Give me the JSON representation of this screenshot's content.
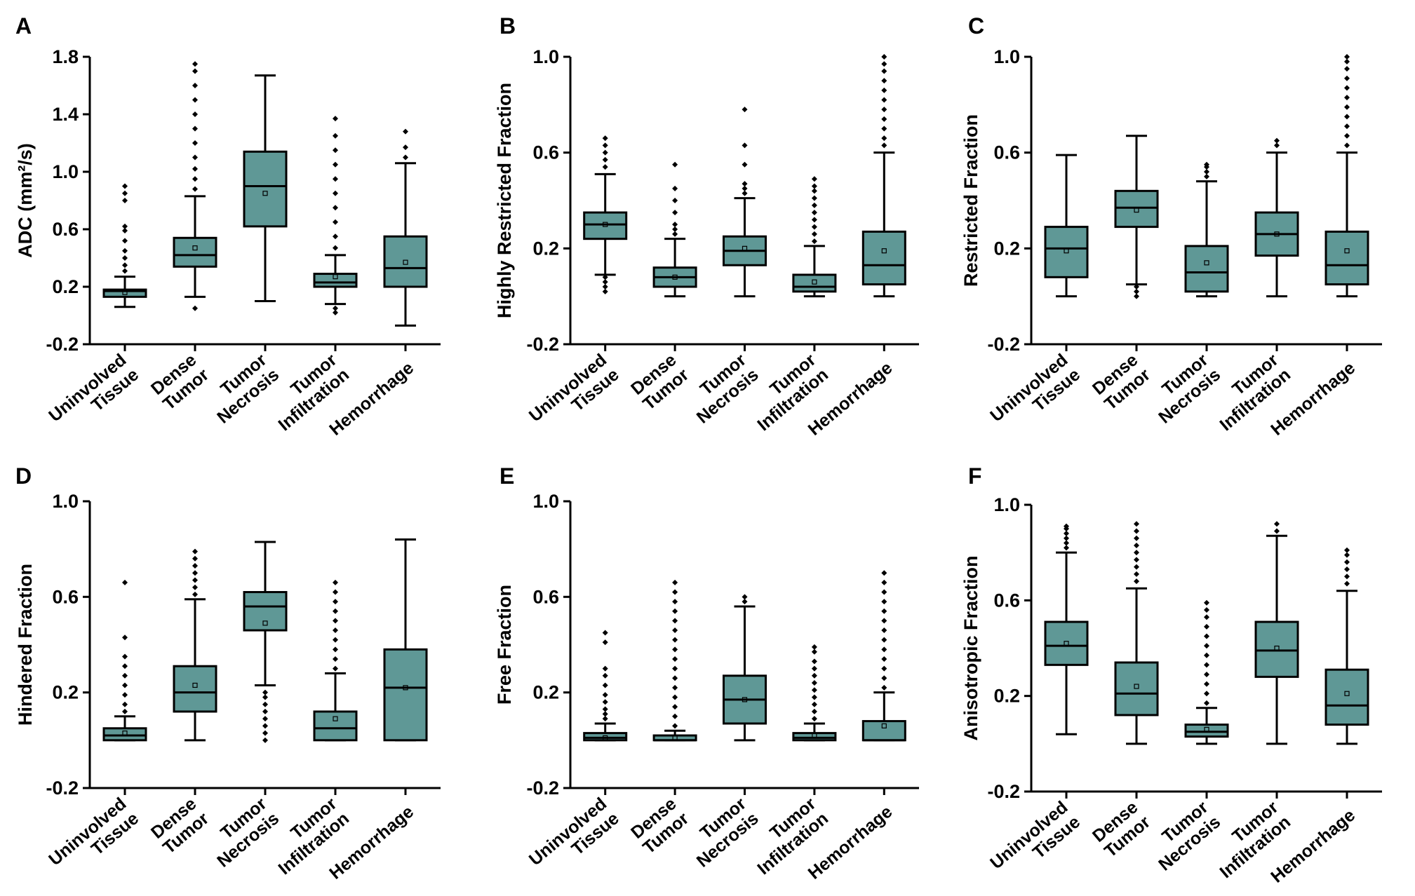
{
  "colors": {
    "box_fill": "#5f9896",
    "stroke": "#000000",
    "background": "#ffffff"
  },
  "chart_data": [
    {
      "panel": "A",
      "type": "boxplot",
      "ylabel": "ADC (mm²/s)",
      "ylim": [
        -0.2,
        1.8
      ],
      "yticks": [
        -0.2,
        0.2,
        0.6,
        1.0,
        1.4,
        1.8
      ],
      "categories": [
        "Uninvolved Tissue",
        "Dense Tumor",
        "Tumor Necrosis",
        "Tumor Infiltration",
        "Hemorrhage"
      ],
      "boxes": [
        {
          "wlo": 0.06,
          "q1": 0.13,
          "med": 0.17,
          "q3": 0.18,
          "whi": 0.27,
          "mean": 0.16,
          "out_lo": [],
          "out_hi": [
            0.31,
            0.35,
            0.4,
            0.45,
            0.52,
            0.59,
            0.62,
            0.8,
            0.85,
            0.9
          ]
        },
        {
          "wlo": 0.13,
          "q1": 0.34,
          "med": 0.42,
          "q3": 0.54,
          "whi": 0.83,
          "mean": 0.47,
          "out_lo": [
            0.05
          ],
          "out_hi": [
            0.88,
            0.95,
            1.02,
            1.1,
            1.2,
            1.3,
            1.4,
            1.5,
            1.6,
            1.7,
            1.75
          ]
        },
        {
          "wlo": 0.1,
          "q1": 0.62,
          "med": 0.9,
          "q3": 1.14,
          "whi": 1.67,
          "mean": 0.85,
          "out_lo": [],
          "out_hi": []
        },
        {
          "wlo": 0.08,
          "q1": 0.2,
          "med": 0.23,
          "q3": 0.29,
          "whi": 0.42,
          "mean": 0.27,
          "out_lo": [
            0.02,
            0.05
          ],
          "out_hi": [
            0.47,
            0.55,
            0.65,
            0.75,
            0.85,
            0.95,
            1.05,
            1.15,
            1.25,
            1.37
          ]
        },
        {
          "wlo": -0.07,
          "q1": 0.2,
          "med": 0.33,
          "q3": 0.55,
          "whi": 1.06,
          "mean": 0.37,
          "out_lo": [],
          "out_hi": [
            1.1,
            1.17,
            1.28
          ]
        }
      ]
    },
    {
      "panel": "B",
      "type": "boxplot",
      "ylabel": "Highly Restricted Fraction",
      "ylim": [
        -0.2,
        1.0
      ],
      "yticks": [
        -0.2,
        0.2,
        0.6,
        1.0
      ],
      "categories": [
        "Uninvolved Tissue",
        "Dense Tumor",
        "Tumor Necrosis",
        "Tumor Infiltration",
        "Hemorrhage"
      ],
      "boxes": [
        {
          "wlo": 0.09,
          "q1": 0.24,
          "med": 0.3,
          "q3": 0.35,
          "whi": 0.51,
          "mean": 0.3,
          "out_lo": [
            0.02,
            0.04,
            0.06,
            0.08
          ],
          "out_hi": [
            0.54,
            0.57,
            0.6,
            0.63,
            0.66
          ]
        },
        {
          "wlo": 0.0,
          "q1": 0.04,
          "med": 0.08,
          "q3": 0.12,
          "whi": 0.24,
          "mean": 0.08,
          "out_lo": [],
          "out_hi": [
            0.26,
            0.28,
            0.3,
            0.35,
            0.4,
            0.45,
            0.55
          ]
        },
        {
          "wlo": 0.0,
          "q1": 0.13,
          "med": 0.19,
          "q3": 0.25,
          "whi": 0.41,
          "mean": 0.2,
          "out_lo": [],
          "out_hi": [
            0.43,
            0.45,
            0.47,
            0.55,
            0.63,
            0.78
          ]
        },
        {
          "wlo": 0.0,
          "q1": 0.02,
          "med": 0.04,
          "q3": 0.09,
          "whi": 0.21,
          "mean": 0.06,
          "out_lo": [],
          "out_hi": [
            0.23,
            0.26,
            0.29,
            0.32,
            0.35,
            0.38,
            0.41,
            0.44,
            0.46,
            0.49
          ]
        },
        {
          "wlo": 0.0,
          "q1": 0.05,
          "med": 0.13,
          "q3": 0.27,
          "whi": 0.6,
          "mean": 0.19,
          "out_lo": [],
          "out_hi": [
            0.63,
            0.66,
            0.7,
            0.74,
            0.78,
            0.82,
            0.86,
            0.9,
            0.94,
            0.97,
            1.0
          ]
        }
      ]
    },
    {
      "panel": "C",
      "type": "boxplot",
      "ylabel": "Restricted Fraction",
      "ylim": [
        -0.2,
        1.0
      ],
      "yticks": [
        -0.2,
        0.2,
        0.6,
        1.0
      ],
      "categories": [
        "Uninvolved Tissue",
        "Dense Tumor",
        "Tumor Necrosis",
        "Tumor Infiltration",
        "Hemorrhage"
      ],
      "boxes": [
        {
          "wlo": 0.0,
          "q1": 0.08,
          "med": 0.2,
          "q3": 0.29,
          "whi": 0.59,
          "mean": 0.19,
          "out_lo": [],
          "out_hi": []
        },
        {
          "wlo": 0.05,
          "q1": 0.29,
          "med": 0.37,
          "q3": 0.44,
          "whi": 0.67,
          "mean": 0.36,
          "out_lo": [
            0.0,
            0.02,
            0.04
          ],
          "out_hi": []
        },
        {
          "wlo": 0.0,
          "q1": 0.02,
          "med": 0.1,
          "q3": 0.21,
          "whi": 0.48,
          "mean": 0.14,
          "out_lo": [],
          "out_hi": [
            0.5,
            0.52,
            0.54,
            0.55
          ]
        },
        {
          "wlo": 0.0,
          "q1": 0.17,
          "med": 0.26,
          "q3": 0.35,
          "whi": 0.6,
          "mean": 0.26,
          "out_lo": [],
          "out_hi": [
            0.63,
            0.65
          ]
        },
        {
          "wlo": 0.0,
          "q1": 0.05,
          "med": 0.13,
          "q3": 0.27,
          "whi": 0.6,
          "mean": 0.19,
          "out_lo": [],
          "out_hi": [
            0.63,
            0.67,
            0.71,
            0.75,
            0.79,
            0.83,
            0.87,
            0.91,
            0.95,
            0.98,
            1.0
          ]
        }
      ]
    },
    {
      "panel": "D",
      "type": "boxplot",
      "ylabel": "Hindered Fraction",
      "ylim": [
        -0.2,
        1.0
      ],
      "yticks": [
        -0.2,
        0.2,
        0.6,
        1.0
      ],
      "categories": [
        "Uninvolved Tissue",
        "Dense Tumor",
        "Tumor Necrosis",
        "Tumor Infiltration",
        "Hemorrhage"
      ],
      "boxes": [
        {
          "wlo": 0.0,
          "q1": 0.0,
          "med": 0.02,
          "q3": 0.05,
          "whi": 0.1,
          "mean": 0.03,
          "out_lo": [],
          "out_hi": [
            0.12,
            0.15,
            0.19,
            0.23,
            0.27,
            0.31,
            0.35,
            0.43,
            0.66
          ]
        },
        {
          "wlo": 0.0,
          "q1": 0.12,
          "med": 0.2,
          "q3": 0.31,
          "whi": 0.59,
          "mean": 0.23,
          "out_lo": [],
          "out_hi": [
            0.61,
            0.64,
            0.67,
            0.7,
            0.73,
            0.76,
            0.79
          ]
        },
        {
          "wlo": 0.23,
          "q1": 0.46,
          "med": 0.56,
          "q3": 0.62,
          "whi": 0.83,
          "mean": 0.49,
          "out_lo": [
            0.0,
            0.03,
            0.06,
            0.09,
            0.12,
            0.15,
            0.18,
            0.2
          ],
          "out_hi": []
        },
        {
          "wlo": 0.0,
          "q1": 0.0,
          "med": 0.05,
          "q3": 0.12,
          "whi": 0.28,
          "mean": 0.09,
          "out_lo": [],
          "out_hi": [
            0.3,
            0.34,
            0.38,
            0.42,
            0.46,
            0.5,
            0.54,
            0.58,
            0.62,
            0.66
          ]
        },
        {
          "wlo": 0.0,
          "q1": 0.0,
          "med": 0.22,
          "q3": 0.38,
          "whi": 0.84,
          "mean": 0.22,
          "out_lo": [],
          "out_hi": []
        }
      ]
    },
    {
      "panel": "E",
      "type": "boxplot",
      "ylabel": "Free Fraction",
      "ylim": [
        -0.2,
        1.0
      ],
      "yticks": [
        -0.2,
        0.2,
        0.6,
        1.0
      ],
      "categories": [
        "Uninvolved Tissue",
        "Dense Tumor",
        "Tumor Necrosis",
        "Tumor Infiltration",
        "Hemorrhage"
      ],
      "boxes": [
        {
          "wlo": 0.0,
          "q1": 0.0,
          "med": 0.01,
          "q3": 0.03,
          "whi": 0.07,
          "mean": 0.01,
          "out_lo": [],
          "out_hi": [
            0.09,
            0.11,
            0.13,
            0.16,
            0.19,
            0.23,
            0.27,
            0.3,
            0.41,
            0.45
          ]
        },
        {
          "wlo": 0.0,
          "q1": 0.0,
          "med": 0.0,
          "q3": 0.02,
          "whi": 0.04,
          "mean": 0.01,
          "out_lo": [],
          "out_hi": [
            0.06,
            0.1,
            0.14,
            0.18,
            0.22,
            0.26,
            0.3,
            0.34,
            0.38,
            0.42,
            0.46,
            0.5,
            0.54,
            0.58,
            0.62,
            0.66
          ]
        },
        {
          "wlo": 0.0,
          "q1": 0.07,
          "med": 0.17,
          "q3": 0.27,
          "whi": 0.56,
          "mean": 0.17,
          "out_lo": [],
          "out_hi": [
            0.58,
            0.6
          ]
        },
        {
          "wlo": 0.0,
          "q1": 0.0,
          "med": 0.01,
          "q3": 0.03,
          "whi": 0.07,
          "mean": 0.02,
          "out_lo": [],
          "out_hi": [
            0.09,
            0.12,
            0.15,
            0.18,
            0.21,
            0.24,
            0.27,
            0.3,
            0.33,
            0.37,
            0.39
          ]
        },
        {
          "wlo": 0.0,
          "q1": 0.0,
          "med": 0.0,
          "q3": 0.08,
          "whi": 0.2,
          "mean": 0.06,
          "out_lo": [],
          "out_hi": [
            0.22,
            0.26,
            0.3,
            0.34,
            0.38,
            0.42,
            0.46,
            0.5,
            0.54,
            0.58,
            0.62,
            0.66,
            0.7
          ]
        }
      ]
    },
    {
      "panel": "F",
      "type": "boxplot",
      "ylabel": "Anisotropic Fraction",
      "ylim": [
        -0.2,
        1.0
      ],
      "yticks": [
        -0.2,
        0.2,
        0.6,
        1.0
      ],
      "categories": [
        "Uninvolved Tissue",
        "Dense Tumor",
        "Tumor Necrosis",
        "Tumor Infiltration",
        "Hemorrhage"
      ],
      "boxes": [
        {
          "wlo": 0.04,
          "q1": 0.33,
          "med": 0.41,
          "q3": 0.51,
          "whi": 0.8,
          "mean": 0.42,
          "out_lo": [],
          "out_hi": [
            0.82,
            0.84,
            0.86,
            0.88,
            0.9,
            0.91
          ]
        },
        {
          "wlo": 0.0,
          "q1": 0.12,
          "med": 0.21,
          "q3": 0.34,
          "whi": 0.65,
          "mean": 0.24,
          "out_lo": [],
          "out_hi": [
            0.68,
            0.71,
            0.74,
            0.77,
            0.8,
            0.83,
            0.86,
            0.89,
            0.92
          ]
        },
        {
          "wlo": 0.0,
          "q1": 0.03,
          "med": 0.05,
          "q3": 0.08,
          "whi": 0.15,
          "mean": 0.06,
          "out_lo": [],
          "out_hi": [
            0.17,
            0.21,
            0.25,
            0.29,
            0.33,
            0.37,
            0.41,
            0.45,
            0.49,
            0.53,
            0.56,
            0.59
          ]
        },
        {
          "wlo": 0.0,
          "q1": 0.28,
          "med": 0.39,
          "q3": 0.51,
          "whi": 0.87,
          "mean": 0.4,
          "out_lo": [],
          "out_hi": [
            0.89,
            0.92
          ]
        },
        {
          "wlo": 0.0,
          "q1": 0.08,
          "med": 0.16,
          "q3": 0.31,
          "whi": 0.64,
          "mean": 0.21,
          "out_lo": [],
          "out_hi": [
            0.67,
            0.7,
            0.73,
            0.76,
            0.79,
            0.81
          ]
        }
      ]
    }
  ]
}
